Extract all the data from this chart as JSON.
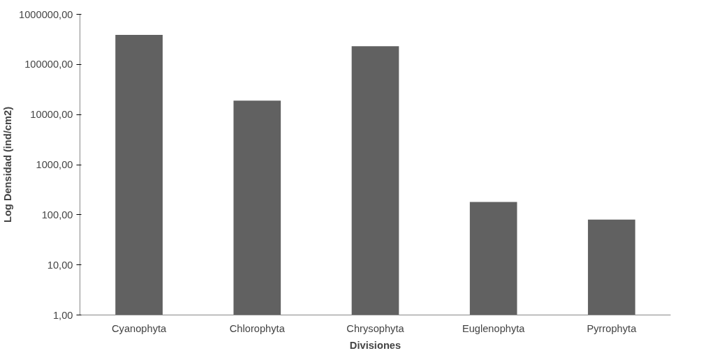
{
  "chart_data": {
    "type": "bar",
    "xlabel": "Divisiones",
    "ylabel": "Log Densidad (ind/cm2)",
    "categories": [
      "Cyanophyta",
      "Chlorophyta",
      "Chrysophyta",
      "Euglenophyta",
      "Pyrrophyta"
    ],
    "values": [
      390000,
      19000,
      230000,
      180,
      80
    ],
    "color": "#616161",
    "log": true,
    "grid": false,
    "ylim": [
      1,
      1000000
    ],
    "yticks": [
      {
        "value": 1,
        "label": "1,00"
      },
      {
        "value": 10,
        "label": "10,00"
      },
      {
        "value": 100,
        "label": "100,00"
      },
      {
        "value": 1000,
        "label": "1000,00"
      },
      {
        "value": 10000,
        "label": "10000,00"
      },
      {
        "value": 100000,
        "label": "100000,00"
      },
      {
        "value": 1000000,
        "label": "1000000,00"
      }
    ]
  }
}
